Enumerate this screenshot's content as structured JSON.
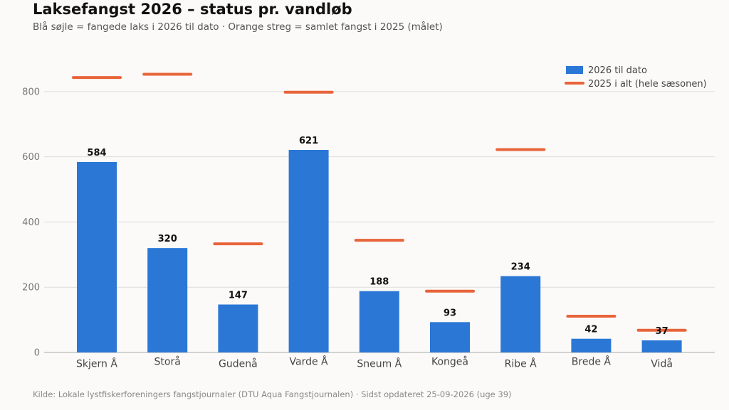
{
  "chart_data": {
    "type": "bar",
    "title": "Laksefangst 2026 – status pr. vandløb",
    "subtitle": "Blå søjle = fangede laks i 2026 til dato · Orange streg = samlet fangst i 2025 (målet)",
    "source": "Kilde: Lokale lystfiskerforeningers fangstjournaler (DTU Aqua Fangstjournalen) · Sidst opdateret 25-09-2026 (uge 39)",
    "categories": [
      "Skjern Å",
      "Storå",
      "Gudenå",
      "Varde Å",
      "Sneum Å",
      "Kongeå",
      "Ribe Å",
      "Brede Å",
      "Vidå"
    ],
    "series": [
      {
        "name": "2026 til dato",
        "type": "bar",
        "color": "#2a77d6",
        "values": [
          584,
          320,
          147,
          621,
          188,
          93,
          234,
          42,
          37
        ]
      },
      {
        "name": "2025 i alt (hele sæsonen)",
        "type": "marker",
        "color": "#e8643a",
        "values": [
          843,
          853,
          333,
          798,
          344,
          188,
          622,
          111,
          68
        ]
      }
    ],
    "yticks": [
      0,
      200,
      400,
      600,
      800
    ],
    "ylim": [
      0,
      950
    ],
    "grid": true,
    "legend_position": "top-right"
  }
}
